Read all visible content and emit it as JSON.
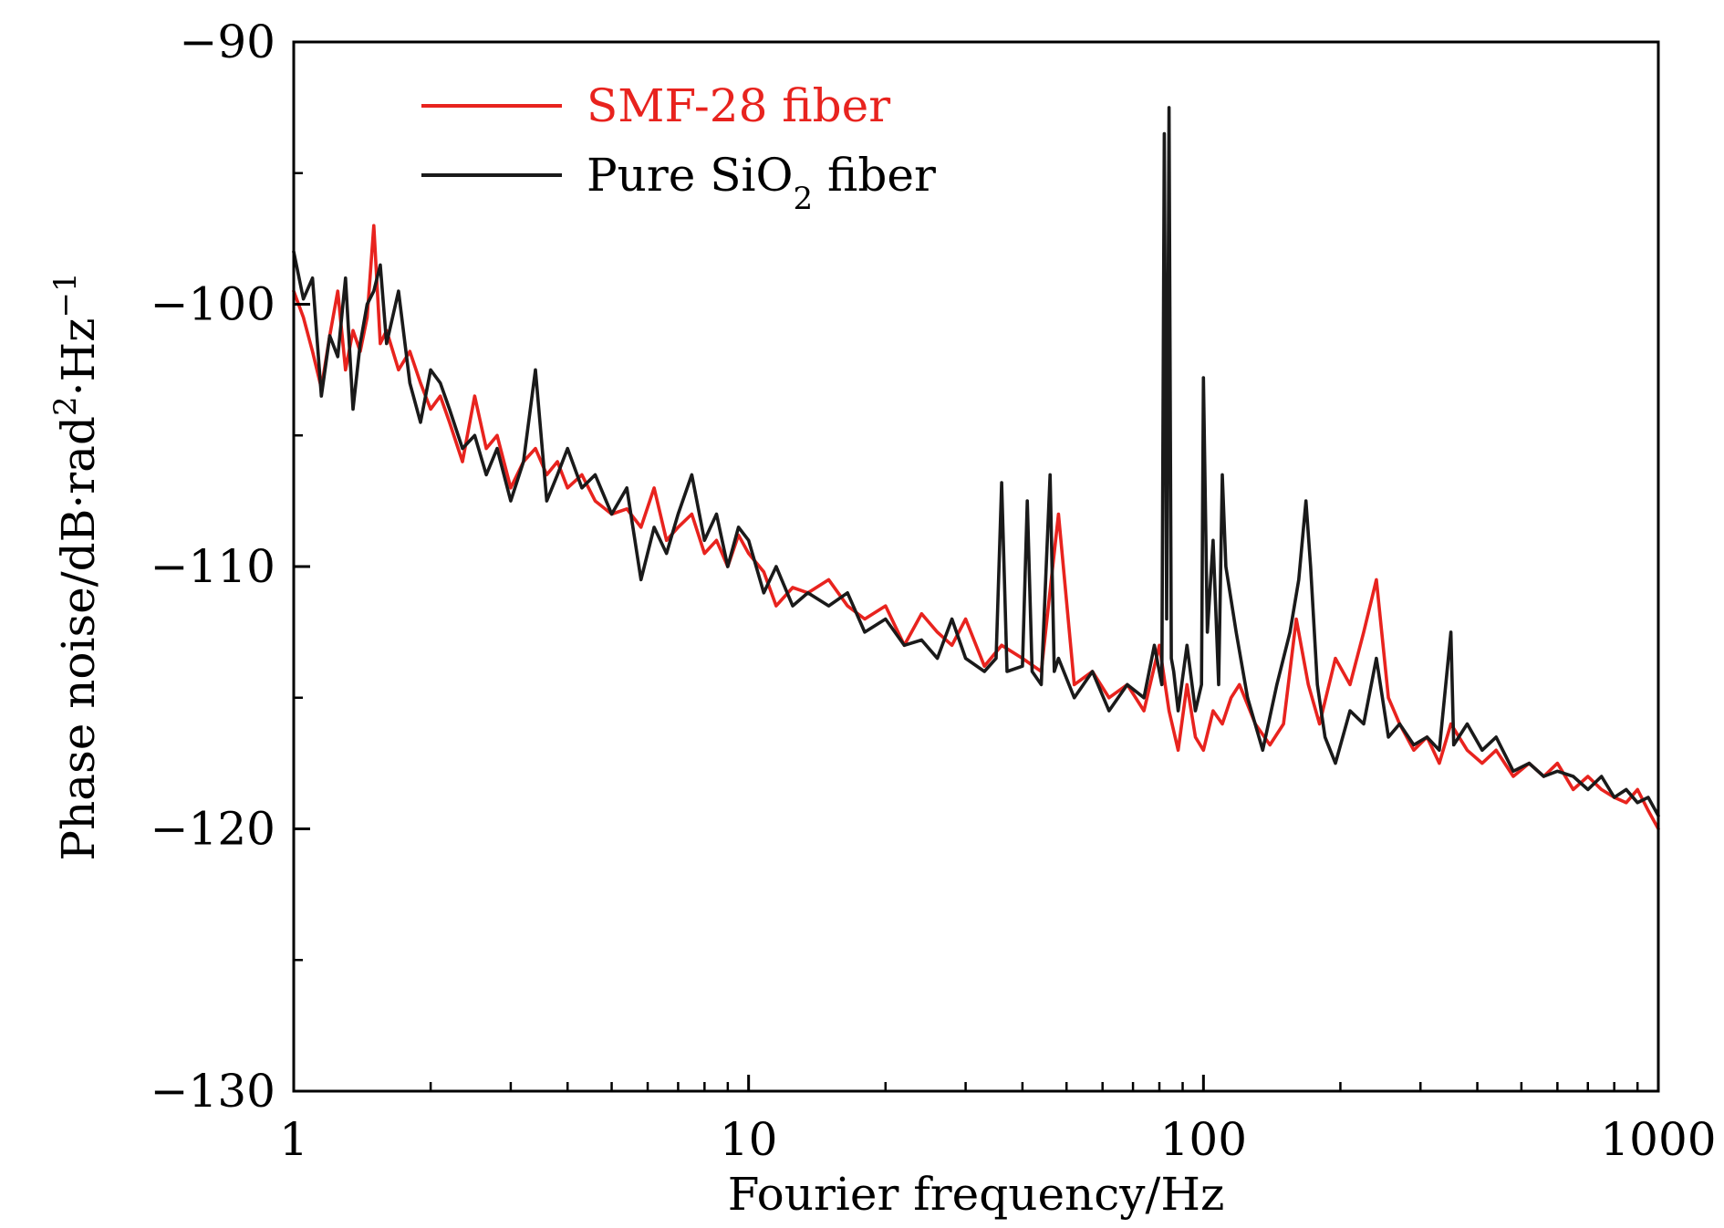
{
  "chart_data": {
    "type": "line",
    "xscale": "log",
    "xlim": [
      1,
      1000
    ],
    "ylim": [
      -130,
      -90
    ],
    "xlabel": "Fourier frequency/Hz",
    "ylabel": "Phase noise/dB·rad²·Hz⁻¹",
    "ylabel_parts": {
      "base": "Phase noise/dB·rad",
      "sup1": "2",
      "mid": "·Hz",
      "sup2": "−1"
    },
    "x_ticks": [
      1,
      10,
      100,
      1000
    ],
    "x_tick_labels": [
      "1",
      "10",
      "100",
      "1000"
    ],
    "y_ticks": [
      -90,
      -100,
      -110,
      -120,
      -130
    ],
    "y_tick_labels": [
      "−90",
      "−100",
      "−110",
      "−120",
      "−130"
    ],
    "y_minor_step": 5,
    "grid": false,
    "legend_position": "top-left",
    "series": [
      {
        "name": "SMF-28 fiber",
        "legend_label": {
          "base": "SMF-28 fiber"
        },
        "color": "#e8231e",
        "x": [
          1.0,
          1.05,
          1.1,
          1.15,
          1.2,
          1.25,
          1.3,
          1.35,
          1.4,
          1.45,
          1.5,
          1.55,
          1.6,
          1.7,
          1.8,
          1.9,
          2.0,
          2.1,
          2.2,
          2.35,
          2.5,
          2.65,
          2.8,
          3.0,
          3.2,
          3.4,
          3.6,
          3.8,
          4.0,
          4.3,
          4.6,
          5.0,
          5.4,
          5.8,
          6.2,
          6.6,
          7.0,
          7.5,
          8.0,
          8.5,
          9.0,
          9.5,
          10.0,
          10.8,
          11.5,
          12.5,
          13.5,
          15.0,
          16.5,
          18.0,
          20.0,
          22.0,
          24.0,
          26.0,
          28.0,
          30.0,
          33.0,
          36.0,
          40.0,
          44.0,
          48.0,
          52.0,
          57.0,
          62.0,
          68.0,
          74.0,
          80.0,
          84.0,
          88.0,
          92.0,
          96.0,
          100.0,
          105.0,
          110.0,
          115.0,
          120.0,
          130.0,
          140.0,
          150.0,
          160.0,
          170.0,
          180.0,
          195.0,
          210.0,
          225.0,
          240.0,
          255.0,
          270.0,
          290.0,
          310.0,
          330.0,
          350.0,
          380.0,
          410.0,
          440.0,
          480.0,
          520.0,
          560.0,
          600.0,
          650.0,
          700.0,
          750.0,
          800.0,
          850.0,
          900.0,
          950.0,
          1000.0
        ],
        "y": [
          -99.5,
          -100.5,
          -101.8,
          -103.2,
          -101.2,
          -99.5,
          -102.5,
          -101.0,
          -101.8,
          -100.5,
          -97.0,
          -101.5,
          -101.0,
          -102.5,
          -101.8,
          -103.0,
          -104.0,
          -103.5,
          -104.5,
          -106.0,
          -103.5,
          -105.5,
          -105.0,
          -107.0,
          -106.0,
          -105.5,
          -106.5,
          -106.0,
          -107.0,
          -106.5,
          -107.5,
          -108.0,
          -107.8,
          -108.5,
          -107.0,
          -109.0,
          -108.5,
          -108.0,
          -109.5,
          -109.0,
          -110.0,
          -108.8,
          -109.5,
          -110.2,
          -111.5,
          -110.8,
          -111.0,
          -110.5,
          -111.5,
          -112.0,
          -111.5,
          -113.0,
          -111.8,
          -112.5,
          -113.0,
          -112.0,
          -113.8,
          -113.0,
          -113.5,
          -114.0,
          -108.0,
          -114.5,
          -114.0,
          -115.0,
          -114.5,
          -115.5,
          -113.0,
          -115.5,
          -117.0,
          -114.5,
          -116.5,
          -117.0,
          -115.5,
          -116.0,
          -115.0,
          -114.5,
          -116.0,
          -116.8,
          -116.0,
          -112.0,
          -114.5,
          -116.0,
          -113.5,
          -114.5,
          -112.5,
          -110.5,
          -115.0,
          -116.0,
          -117.0,
          -116.5,
          -117.5,
          -116.0,
          -117.0,
          -117.5,
          -117.0,
          -118.0,
          -117.5,
          -118.0,
          -117.5,
          -118.5,
          -118.0,
          -118.5,
          -118.8,
          -119.0,
          -118.5,
          -119.3,
          -120.0
        ]
      },
      {
        "name": "Pure SiO₂ fiber",
        "legend_label": {
          "base": "Pure SiO",
          "sub": "2",
          "tail": " fiber"
        },
        "color": "#1a1a1a",
        "x": [
          1.0,
          1.05,
          1.1,
          1.15,
          1.2,
          1.25,
          1.3,
          1.35,
          1.4,
          1.45,
          1.5,
          1.55,
          1.6,
          1.7,
          1.8,
          1.9,
          2.0,
          2.1,
          2.2,
          2.35,
          2.5,
          2.65,
          2.8,
          3.0,
          3.2,
          3.4,
          3.6,
          3.8,
          4.0,
          4.3,
          4.6,
          5.0,
          5.4,
          5.8,
          6.2,
          6.6,
          7.0,
          7.5,
          8.0,
          8.5,
          9.0,
          9.5,
          10.0,
          10.8,
          11.5,
          12.5,
          13.5,
          15.0,
          16.5,
          18.0,
          20.0,
          22.0,
          24.0,
          26.0,
          28.0,
          30.0,
          33.0,
          35.0,
          36.0,
          37.0,
          40.0,
          41.0,
          42.0,
          44.0,
          46.0,
          47.0,
          48.0,
          52.0,
          57.0,
          62.0,
          68.0,
          74.0,
          78.0,
          81.0,
          82.0,
          83.0,
          84.0,
          85.0,
          86.0,
          88.0,
          92.0,
          96.0,
          99.0,
          100.0,
          102.0,
          105.0,
          108.0,
          110.0,
          112.0,
          118.0,
          125.0,
          135.0,
          145.0,
          155.0,
          162.0,
          168.0,
          172.0,
          178.0,
          185.0,
          195.0,
          210.0,
          225.0,
          240.0,
          255.0,
          270.0,
          290.0,
          310.0,
          330.0,
          350.0,
          355.0,
          380.0,
          410.0,
          440.0,
          480.0,
          520.0,
          560.0,
          600.0,
          650.0,
          700.0,
          750.0,
          800.0,
          850.0,
          900.0,
          950.0,
          1000.0
        ],
        "y": [
          -98.0,
          -99.8,
          -99.0,
          -103.5,
          -101.2,
          -102.0,
          -99.0,
          -104.0,
          -101.5,
          -100.0,
          -99.5,
          -98.5,
          -101.5,
          -99.5,
          -103.0,
          -104.5,
          -102.5,
          -103.0,
          -104.0,
          -105.5,
          -105.0,
          -106.5,
          -105.5,
          -107.5,
          -106.0,
          -102.5,
          -107.5,
          -106.5,
          -105.5,
          -107.0,
          -106.5,
          -108.0,
          -107.0,
          -110.5,
          -108.5,
          -109.5,
          -108.0,
          -106.5,
          -109.0,
          -108.0,
          -110.0,
          -108.5,
          -109.0,
          -111.0,
          -110.0,
          -111.5,
          -111.0,
          -111.5,
          -111.0,
          -112.5,
          -112.0,
          -113.0,
          -112.8,
          -113.5,
          -112.0,
          -113.5,
          -114.0,
          -113.5,
          -106.8,
          -114.0,
          -113.8,
          -107.5,
          -114.0,
          -114.5,
          -106.5,
          -114.0,
          -113.5,
          -115.0,
          -114.0,
          -115.5,
          -114.5,
          -115.0,
          -113.0,
          -114.5,
          -93.5,
          -112.0,
          -92.5,
          -113.5,
          -114.0,
          -115.5,
          -113.0,
          -115.5,
          -114.5,
          -102.8,
          -112.5,
          -109.0,
          -114.5,
          -106.5,
          -110.0,
          -112.5,
          -115.0,
          -117.0,
          -114.5,
          -112.5,
          -110.5,
          -107.5,
          -110.0,
          -114.5,
          -116.5,
          -117.5,
          -115.5,
          -116.0,
          -113.5,
          -116.5,
          -116.0,
          -116.8,
          -116.5,
          -117.0,
          -112.5,
          -116.8,
          -116.0,
          -117.0,
          -116.5,
          -117.8,
          -117.5,
          -118.0,
          -117.8,
          -118.0,
          -118.5,
          -118.0,
          -118.8,
          -118.5,
          -119.0,
          -118.8,
          -119.5
        ]
      }
    ]
  }
}
